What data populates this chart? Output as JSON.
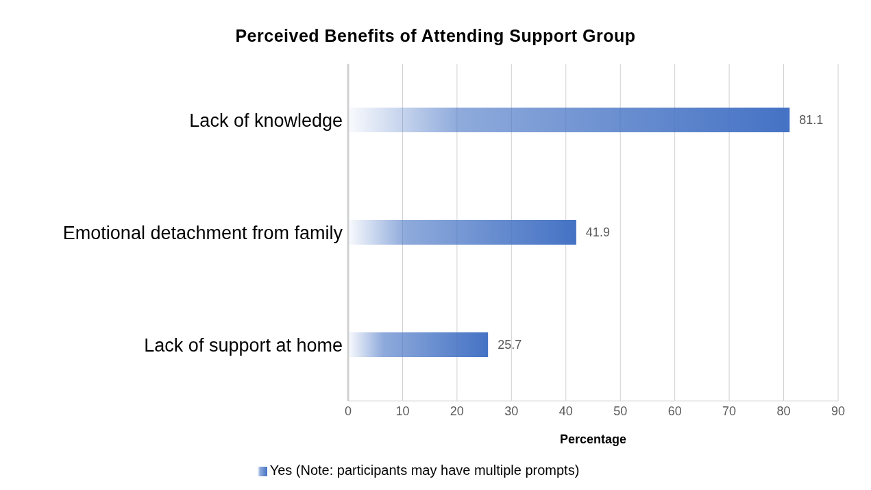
{
  "chart_data": {
    "type": "bar",
    "orientation": "horizontal",
    "title": "Perceived Benefits of Attending Support Group",
    "categories": [
      "Lack of knowledge",
      "Emotional detachment from family",
      "Lack of support at home"
    ],
    "series": [
      {
        "name": "Yes (Note: participants may have multiple prompts)",
        "color": "#4472c4",
        "values": [
          81.1,
          41.9,
          25.7
        ]
      }
    ],
    "xlabel": "Percentage",
    "xlim": [
      0,
      90
    ],
    "xticks": [
      0,
      10,
      20,
      30,
      40,
      50,
      60,
      70,
      80,
      90
    ],
    "grid": "x",
    "legend": "bottom",
    "data_labels": true
  }
}
